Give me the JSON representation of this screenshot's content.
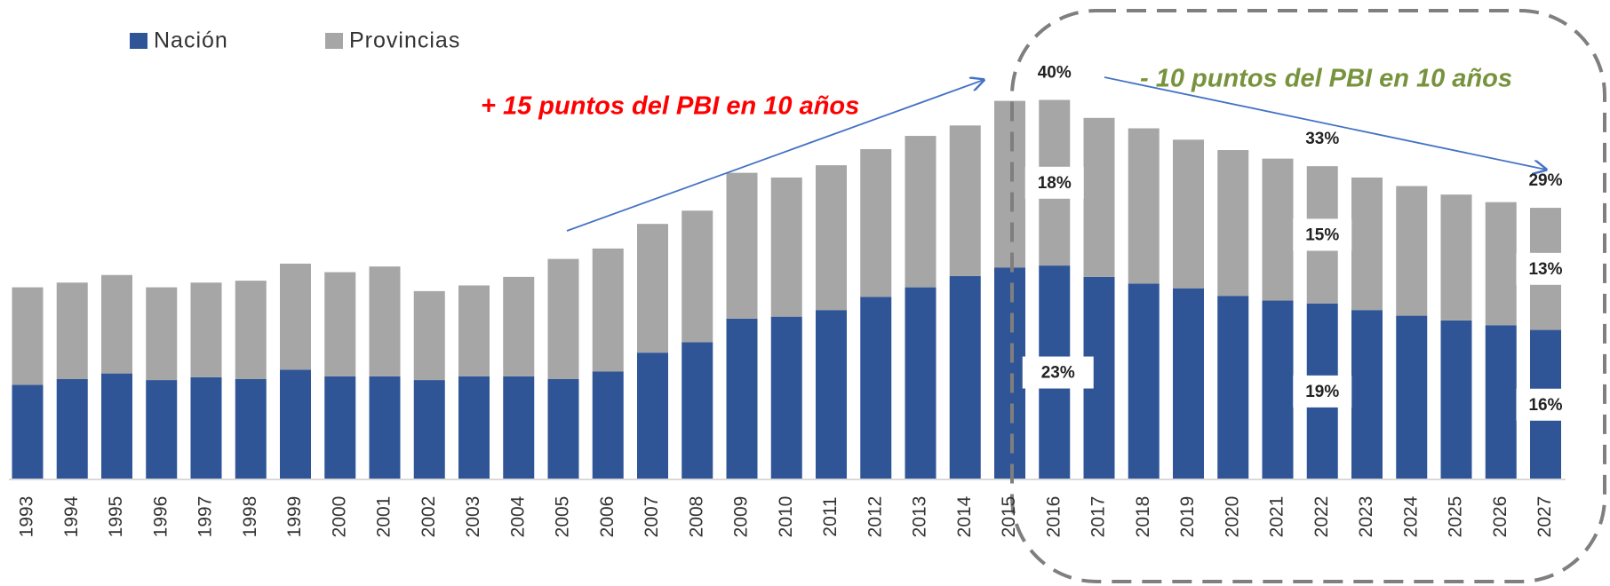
{
  "chart_data": {
    "type": "stacked_bar",
    "categories": [
      "1993",
      "1994",
      "1995",
      "1996",
      "1997",
      "1998",
      "1999",
      "2000",
      "2001",
      "2002",
      "2003",
      "2004",
      "2005",
      "2006",
      "2007",
      "2008",
      "2009",
      "2010",
      "2011",
      "2012",
      "2013",
      "2014",
      "2015",
      "2016",
      "2017",
      "2018",
      "2019",
      "2020",
      "2021",
      "2022",
      "2023",
      "2024",
      "2025",
      "2026",
      "2027"
    ],
    "series": [
      {
        "name": "Nación",
        "color": "#2f5597",
        "values": [
          10.0,
          10.6,
          11.2,
          10.5,
          10.8,
          10.6,
          11.6,
          10.9,
          10.9,
          10.5,
          10.9,
          10.9,
          10.6,
          11.4,
          13.4,
          14.5,
          17.0,
          17.2,
          17.9,
          19.3,
          20.3,
          21.5,
          22.4,
          22.6,
          21.4,
          20.7,
          20.2,
          19.4,
          18.9,
          18.6,
          17.9,
          17.3,
          16.8,
          16.3,
          15.8
        ],
        "value_labels": [
          null,
          null,
          null,
          null,
          null,
          null,
          null,
          null,
          null,
          null,
          null,
          null,
          null,
          null,
          null,
          null,
          null,
          null,
          null,
          null,
          null,
          null,
          null,
          "23%",
          null,
          null,
          null,
          null,
          null,
          "19%",
          null,
          null,
          null,
          null,
          "16%"
        ]
      },
      {
        "name": "Provincias",
        "color": "#a6a6a6",
        "values": [
          10.3,
          10.2,
          10.4,
          9.8,
          10.0,
          10.4,
          11.2,
          11.0,
          11.6,
          9.4,
          9.6,
          10.5,
          12.7,
          13.0,
          13.6,
          13.9,
          15.4,
          14.7,
          15.3,
          15.6,
          16.0,
          15.9,
          17.6,
          17.5,
          16.8,
          16.4,
          15.7,
          15.4,
          15.0,
          14.5,
          14.0,
          13.7,
          13.3,
          13.0,
          12.9
        ],
        "value_labels": [
          null,
          null,
          null,
          null,
          null,
          null,
          null,
          null,
          null,
          null,
          null,
          null,
          null,
          null,
          null,
          null,
          null,
          null,
          null,
          null,
          null,
          null,
          null,
          "18%",
          null,
          null,
          null,
          null,
          null,
          "15%",
          null,
          null,
          null,
          null,
          "13%"
        ]
      }
    ],
    "total_labels": [
      null,
      null,
      null,
      null,
      null,
      null,
      null,
      null,
      null,
      null,
      null,
      null,
      null,
      null,
      null,
      null,
      null,
      null,
      null,
      null,
      null,
      null,
      null,
      "40%",
      null,
      null,
      null,
      null,
      null,
      "33%",
      null,
      null,
      null,
      null,
      "29%"
    ],
    "annotations": [
      {
        "text": "+ 15 puntos del PBI en 10 años",
        "color": "#ff0000"
      },
      {
        "text": "- 10 puntos del PBI en 10 años",
        "color": "#77933c"
      }
    ],
    "legend": "top-left"
  }
}
